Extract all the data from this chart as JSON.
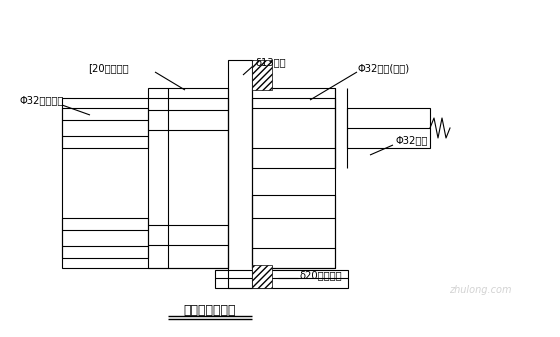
{
  "title": "拉杆位置大样图",
  "bg_color": "#ffffff",
  "line_color": "#000000",
  "labels": {
    "channel_steel": "[20加强槽钢",
    "formwork": "δ13模面",
    "nut_long": "Φ32螺母(加长)",
    "pull_rod": "Φ32拉杆",
    "rough_nut": "Φ32粗制螺母",
    "steel_plate": "δ20加强钢板"
  },
  "fig_width": 5.6,
  "fig_height": 3.37,
  "dpi": 100
}
